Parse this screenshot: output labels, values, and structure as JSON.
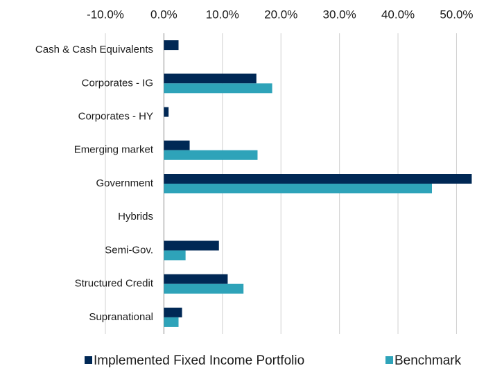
{
  "chart_data": {
    "type": "hbar",
    "categories": [
      "Cash & Cash Equivalents",
      "Corporates - IG",
      "Corporates - HY",
      "Emerging market",
      "Government",
      "Hybrids",
      "Semi-Gov.",
      "Structured Credit",
      "Supranational"
    ],
    "series": [
      {
        "name": "Implemented Fixed Income Portfolio",
        "color": "#002855",
        "values": [
          2.5,
          15.8,
          0.8,
          4.4,
          52.6,
          0,
          9.4,
          10.9,
          3.1
        ]
      },
      {
        "name": "Benchmark",
        "color": "#2ea3b9",
        "values": [
          null,
          18.5,
          null,
          16.0,
          45.8,
          0,
          3.7,
          13.6,
          2.5
        ]
      }
    ],
    "xlim": [
      -10,
      53.5
    ],
    "xticks": [
      {
        "value": -10,
        "label": "-10.0%"
      },
      {
        "value": 0,
        "label": "0.0%"
      },
      {
        "value": 10,
        "label": "10.0%"
      },
      {
        "value": 20,
        "label": "20.0%"
      },
      {
        "value": 30,
        "label": "30.0%"
      },
      {
        "value": 40,
        "label": "40.0%"
      },
      {
        "value": 50,
        "label": "50.0%"
      }
    ],
    "grid": true
  }
}
